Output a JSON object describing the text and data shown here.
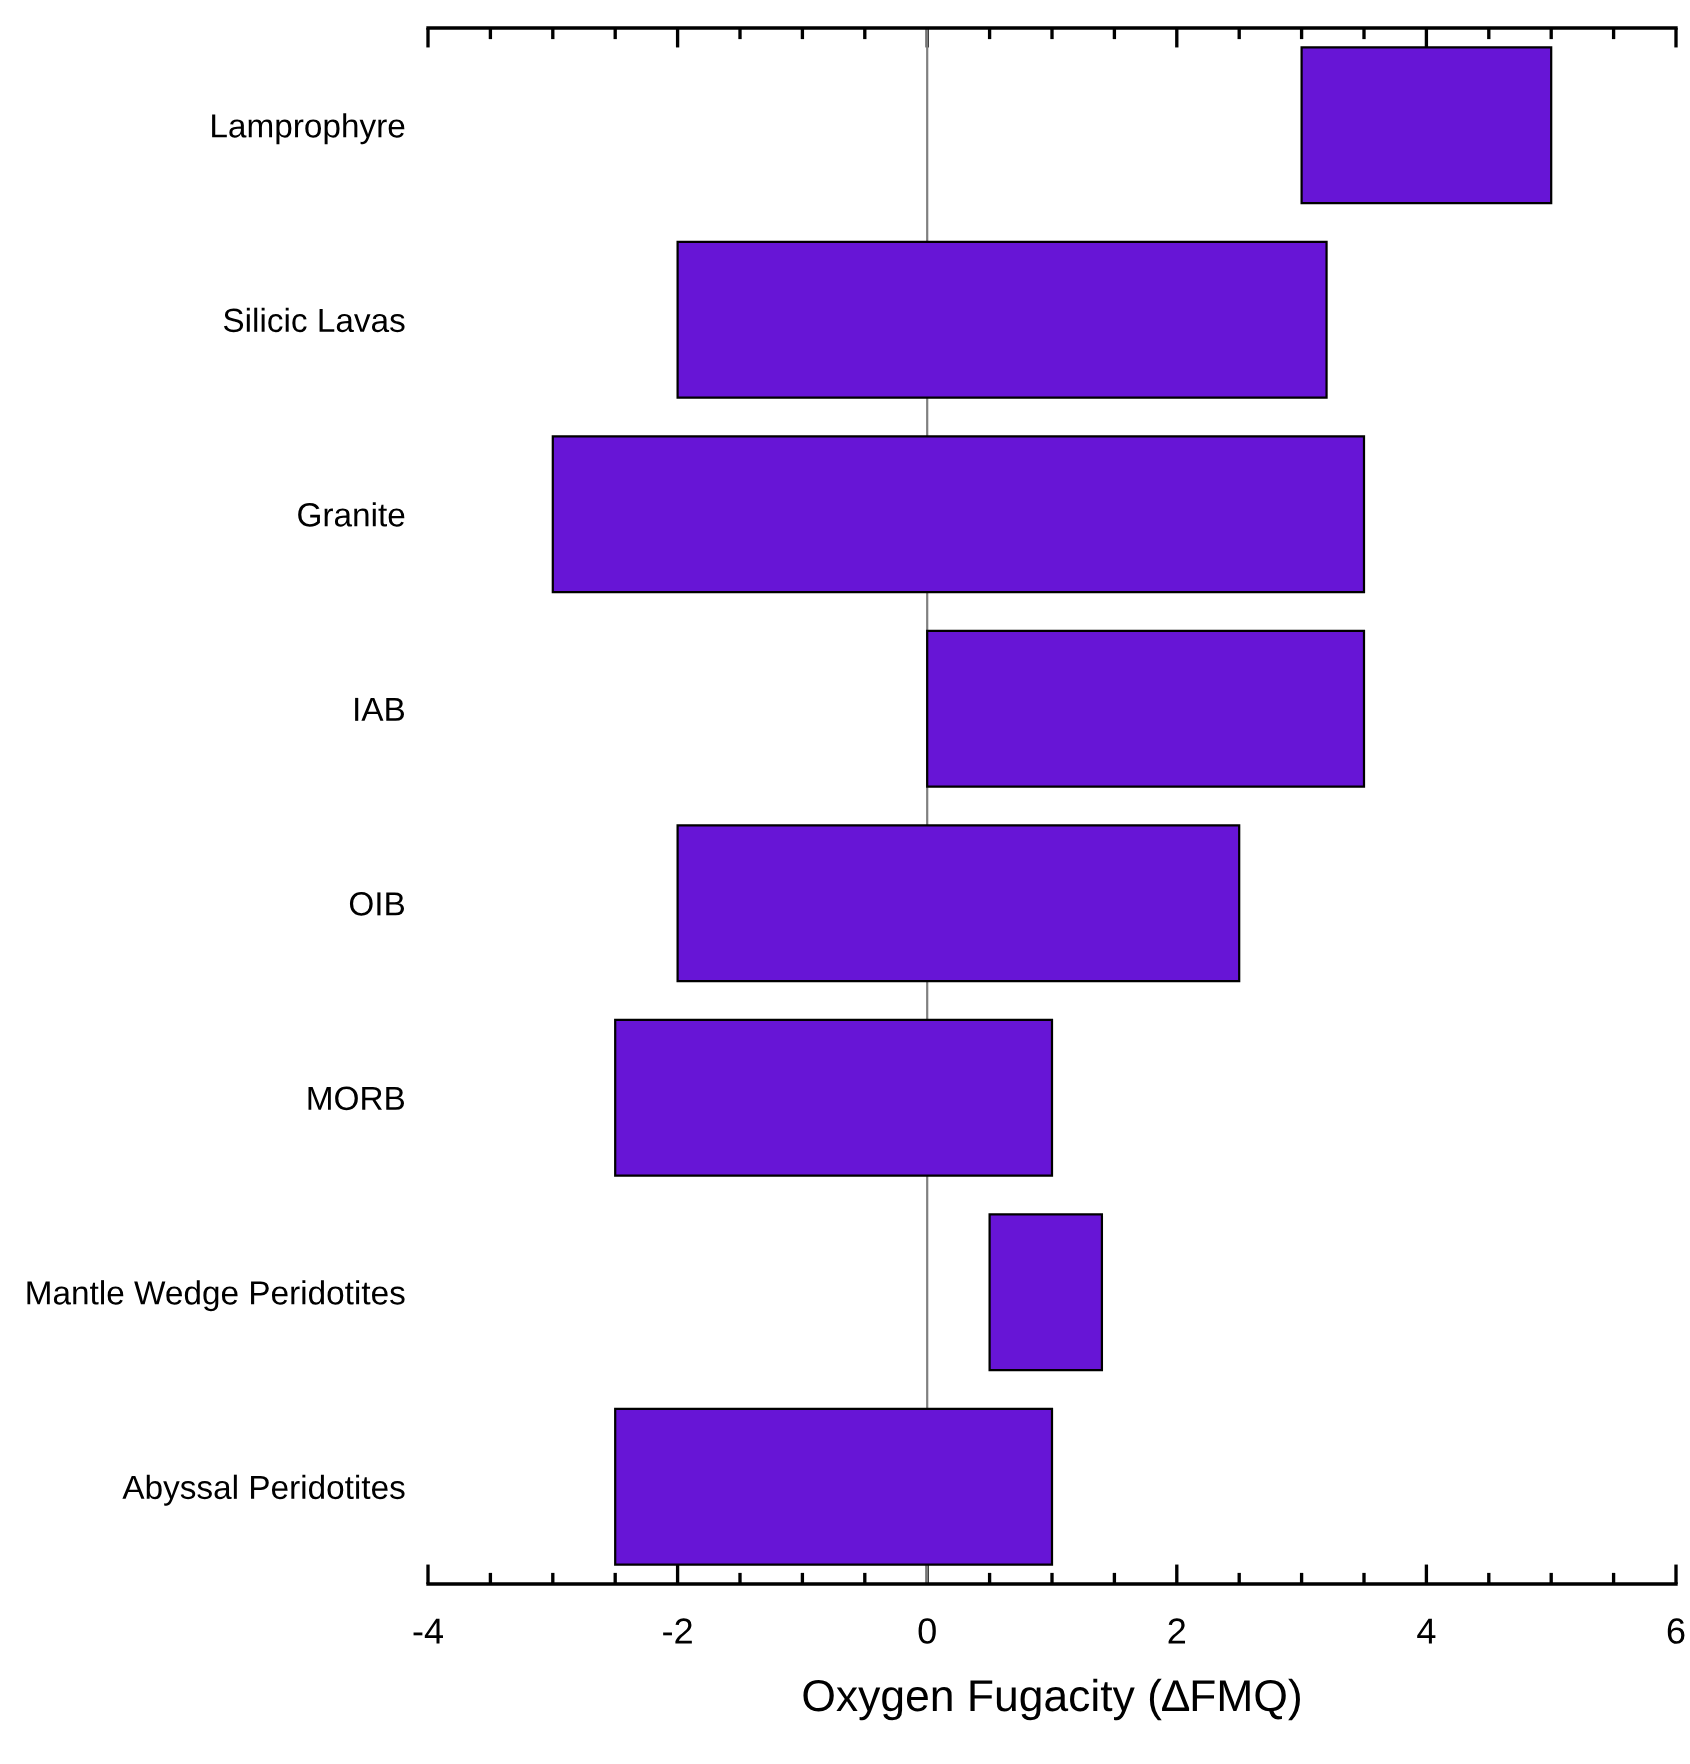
{
  "chart_data": {
    "type": "bar",
    "orientation": "horizontal",
    "xlabel": "Oxygen Fugacity (∆FMQ)",
    "categories": [
      "Lamprophyre",
      "Silicic Lavas",
      "Granite",
      "IAB",
      "OIB",
      "MORB",
      "Mantle Wedge Peridotites",
      "Abyssal Peridotites"
    ],
    "base": [
      3,
      -2,
      -3,
      0,
      -2,
      -2.5,
      0.5,
      -2.5
    ],
    "values": [
      2,
      5.2,
      6.5,
      3.5,
      4.5,
      3.5,
      0.9,
      3.5
    ],
    "color": "#6715d6",
    "xlim": [
      -4,
      6
    ],
    "xticks": [
      -4,
      {
        "value": -3.5,
        "label": null
      },
      {
        "value": -3,
        "label": null
      },
      {
        "value": -2.5,
        "label": null
      },
      -2,
      {
        "value": -1.5,
        "label": null
      },
      {
        "value": -1,
        "label": null
      },
      {
        "value": -0.5,
        "label": null
      },
      0,
      {
        "value": 0.5,
        "label": null
      },
      {
        "value": 1,
        "label": null
      },
      {
        "value": 1.5,
        "label": null
      },
      2,
      {
        "value": 2.5,
        "label": null
      },
      {
        "value": 3,
        "label": null
      },
      {
        "value": 3.5,
        "label": null
      },
      4,
      {
        "value": 4.5,
        "label": null
      },
      {
        "value": 5,
        "label": null
      },
      {
        "value": 5.5,
        "label": null
      },
      6
    ],
    "ref_lines": [
      {
        "axis": "x",
        "value": 0,
        "color": "#808080"
      }
    ],
    "grid": false,
    "legend": false
  }
}
